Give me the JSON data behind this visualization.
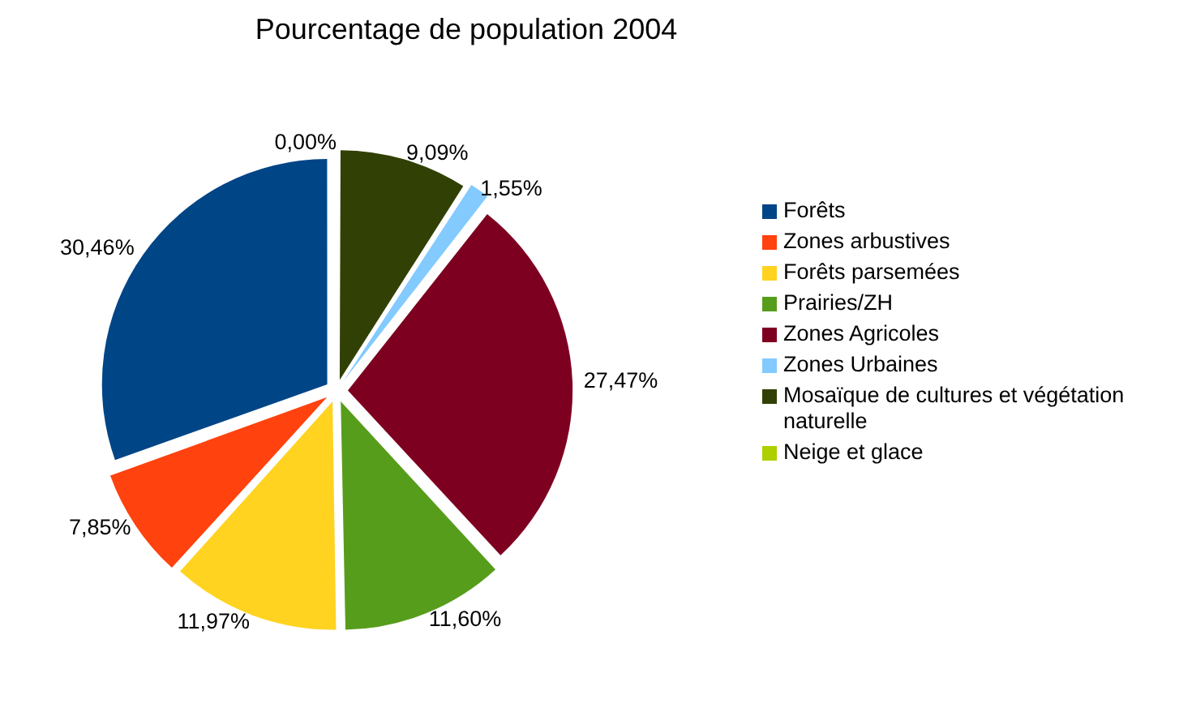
{
  "chart_data": {
    "type": "pie",
    "title": "Pourcentage de population 2004",
    "categories": [
      "Neige et glace",
      "Mosaïque de cultures et végétation naturelle",
      "Zones Urbaines",
      "Zones Agricoles",
      "Prairies/ZH",
      "Forêts parsemées",
      "Zones arbustives",
      "Forêts"
    ],
    "values": [
      0,
      9.09,
      1.55,
      27.47,
      11.6,
      11.97,
      7.85,
      30.46
    ],
    "value_labels": [
      "0,00%",
      "9,09%",
      "1,55%",
      "27,47%",
      "11,60%",
      "11,97%",
      "7,85%",
      "30,46%"
    ],
    "colors": [
      "#aecf00",
      "#314004",
      "#83caff",
      "#7e0021",
      "#579d1c",
      "#ffd320",
      "#ff420e",
      "#004586"
    ],
    "legend": "right"
  }
}
